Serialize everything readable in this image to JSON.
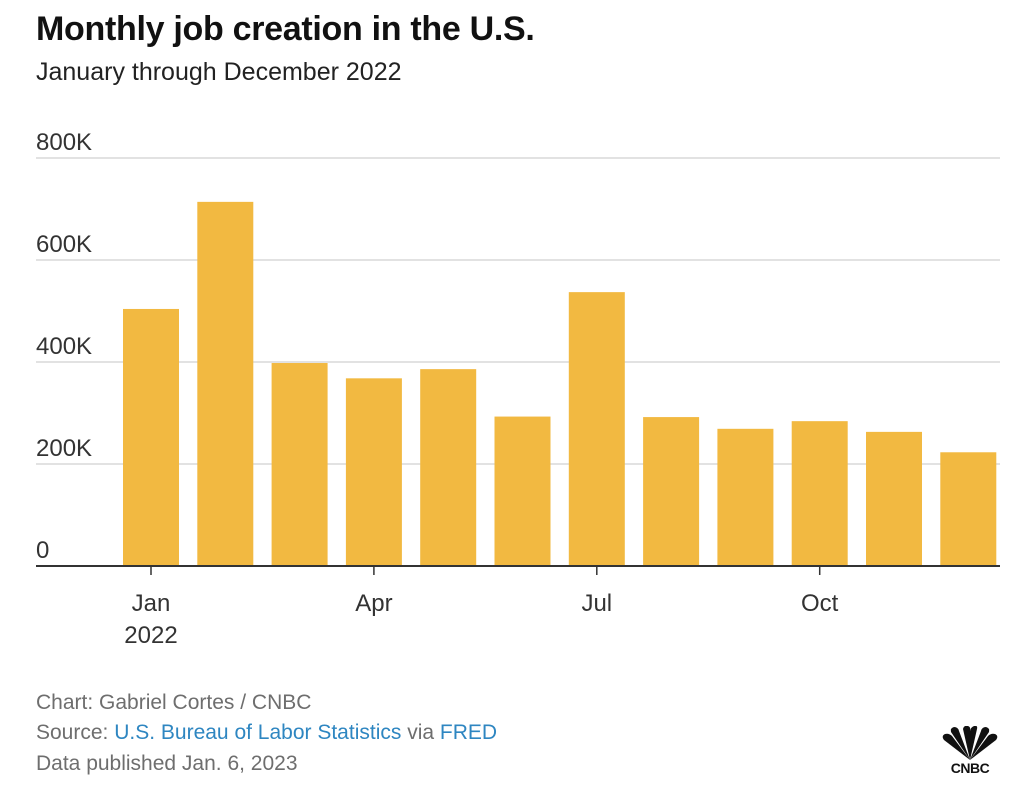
{
  "header": {
    "title": "Monthly job creation in the U.S.",
    "subtitle": "January through December 2022"
  },
  "chart_data": {
    "type": "bar",
    "categories": [
      "Jan 2022",
      "Feb 2022",
      "Mar 2022",
      "Apr 2022",
      "May 2022",
      "Jun 2022",
      "Jul 2022",
      "Aug 2022",
      "Sep 2022",
      "Oct 2022",
      "Nov 2022",
      "Dec 2022"
    ],
    "values": [
      504000,
      714000,
      398000,
      368000,
      386000,
      293000,
      537000,
      292000,
      269000,
      284000,
      263000,
      223000
    ],
    "ylim": [
      0,
      800000
    ],
    "y_ticks": [
      {
        "value": 0,
        "label": "0"
      },
      {
        "value": 200000,
        "label": "200K"
      },
      {
        "value": 400000,
        "label": "400K"
      },
      {
        "value": 600000,
        "label": "600K"
      },
      {
        "value": 800000,
        "label": "800K"
      }
    ],
    "x_ticks": [
      {
        "index": 0,
        "label": "Jan",
        "sublabel": "2022"
      },
      {
        "index": 3,
        "label": "Apr",
        "sublabel": ""
      },
      {
        "index": 6,
        "label": "Jul",
        "sublabel": ""
      },
      {
        "index": 9,
        "label": "Oct",
        "sublabel": ""
      }
    ],
    "grid": true,
    "bar_color": "#f2b941"
  },
  "footer": {
    "credit": "Chart: Gabriel Cortes / CNBC",
    "source_prefix": "Source: ",
    "source_link": "U.S. Bureau of Labor Statistics",
    "source_via": " via ",
    "source_link2": "FRED",
    "published": "Data published Jan. 6, 2023"
  },
  "logo": {
    "text": "CNBC",
    "icon": "peacock-icon",
    "colors": [
      "#111111"
    ]
  }
}
